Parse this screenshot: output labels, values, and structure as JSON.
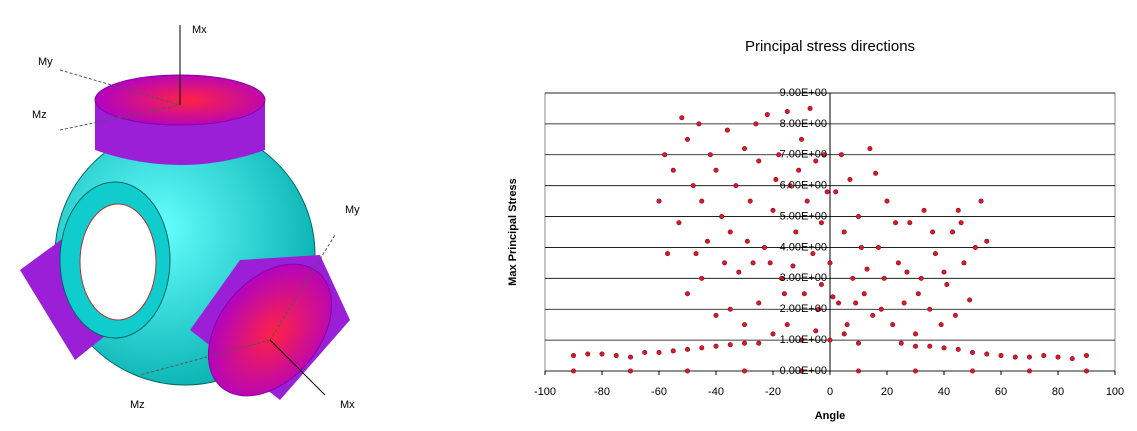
{
  "figure": {
    "labels": [
      "Mx",
      "My",
      "Mz",
      "My",
      "Mz",
      "Mx"
    ]
  },
  "chart_data": {
    "type": "scatter",
    "title": "Principal stress directions",
    "x_label": "Angle",
    "y_label": "Max Principal Stress",
    "color": "#e8141c",
    "edge_color": "#6a1040",
    "grid": true,
    "xlim": [
      -100,
      100
    ],
    "xticks": [
      -100,
      -80,
      -60,
      -40,
      -20,
      0,
      20,
      40,
      60,
      80,
      100
    ],
    "ylim": [
      0,
      9
    ],
    "yticks": [
      {
        "value": 0,
        "label": "0.00E+00"
      },
      {
        "value": 1,
        "label": "1.00E+00"
      },
      {
        "value": 2,
        "label": "2.00E+00"
      },
      {
        "value": 3,
        "label": "3.00E+00"
      },
      {
        "value": 4,
        "label": "4.00E+00"
      },
      {
        "value": 5,
        "label": "5.00E+00"
      },
      {
        "value": 6,
        "label": "6.00E+00"
      },
      {
        "value": 7,
        "label": "7.00E+00"
      },
      {
        "value": 8,
        "label": "8.00E+00"
      },
      {
        "value": 9,
        "label": "9.00E+00"
      }
    ],
    "x": [
      -90,
      -85,
      -80,
      -75,
      -70,
      -65,
      -60,
      -55,
      -50,
      -45,
      -40,
      -35,
      -30,
      -25,
      25,
      30,
      35,
      40,
      45,
      50,
      55,
      60,
      65,
      70,
      75,
      80,
      85,
      90,
      -90,
      -70,
      -50,
      -30,
      -10,
      10,
      30,
      50,
      70,
      90,
      -58,
      -55,
      -52,
      -50,
      -48,
      -46,
      -45,
      -42,
      -40,
      -38,
      -36,
      -35,
      -33,
      -30,
      -28,
      -27,
      -25,
      -23,
      -22,
      -20,
      -18,
      -17,
      -15,
      -14,
      -12,
      -10,
      -9,
      -8,
      -6,
      -5,
      -4,
      -3,
      -2,
      0,
      2,
      3,
      5,
      6,
      8,
      10,
      12,
      14,
      15,
      17,
      19,
      20,
      22,
      24,
      26,
      28,
      30,
      32,
      33,
      35,
      37,
      39,
      41,
      43,
      45,
      47,
      49,
      51,
      53,
      55,
      -57,
      -50,
      -45,
      -40,
      -35,
      -30,
      -25,
      -20,
      -15,
      -10,
      -5,
      0,
      5,
      10,
      -60,
      -43,
      -32,
      -26,
      -19,
      -11,
      -7,
      -1,
      4,
      7,
      11,
      16,
      18,
      23,
      27,
      31,
      36,
      40,
      44,
      46,
      -53,
      -47,
      -37,
      -29,
      -21,
      -16,
      -13,
      -3,
      1,
      9,
      13
    ],
    "y": [
      0.5,
      0.55,
      0.55,
      0.5,
      0.45,
      0.6,
      0.6,
      0.65,
      0.7,
      0.75,
      0.8,
      0.85,
      0.9,
      0.9,
      0.9,
      0.8,
      0.8,
      0.75,
      0.7,
      0.6,
      0.55,
      0.5,
      0.45,
      0.45,
      0.5,
      0.45,
      0.4,
      0.5,
      0,
      0,
      0,
      0,
      0,
      0,
      0,
      0,
      0,
      0,
      7,
      6.5,
      8.2,
      7.5,
      6,
      8,
      5.5,
      7,
      6.5,
      5,
      7.8,
      4.5,
      6,
      7.2,
      5.5,
      3.5,
      6.8,
      4,
      8.3,
      5.2,
      7,
      3,
      8.4,
      6,
      4.5,
      7.5,
      2.5,
      5.5,
      3.8,
      6.8,
      2,
      4.8,
      7,
      3.5,
      5.8,
      2.2,
      4.5,
      1.5,
      3,
      5,
      2.5,
      7.2,
      1.8,
      4,
      3,
      5.5,
      1.5,
      3.5,
      2.2,
      4.8,
      1.2,
      3,
      5.2,
      2,
      3.8,
      1.5,
      2.8,
      4.5,
      5.2,
      3.5,
      2.3,
      4,
      5.5,
      4.2,
      3.8,
      2.5,
      3,
      1.8,
      2,
      1.5,
      2.2,
      1.2,
      1.5,
      1,
      1.3,
      1,
      1.2,
      0.9,
      5.5,
      4.2,
      3.2,
      8,
      6.2,
      6.5,
      8.5,
      5.8,
      7,
      6.2,
      4,
      6.4,
      2,
      4.8,
      3.2,
      2.5,
      4.5,
      3.2,
      1.8,
      4.8,
      4.8,
      3.8,
      3.5,
      4.2,
      3.5,
      2.5,
      3.4,
      2.8,
      2.4,
      2.2,
      3.3
    ]
  }
}
